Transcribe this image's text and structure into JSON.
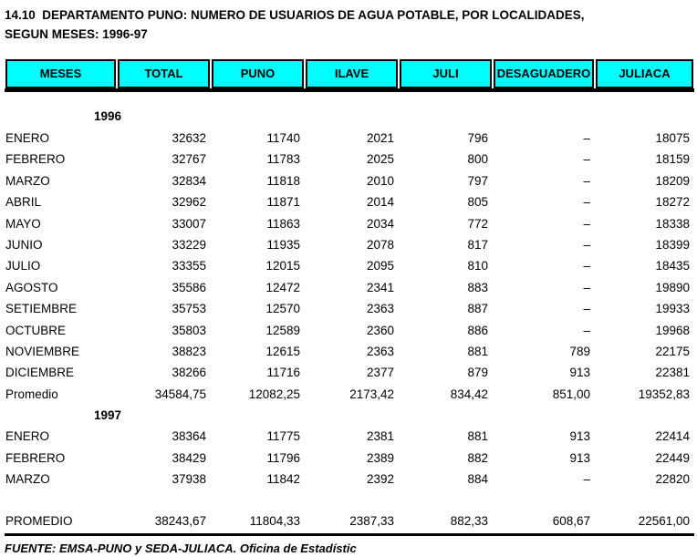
{
  "page": {
    "title_line1": "14.10  DEPARTAMENTO PUNO: NUMERO DE USUARIOS DE AGUA POTABLE, POR LOCALIDADES,",
    "title_line2": "SEGUN MESES: 1996-97"
  },
  "colors": {
    "header_bg": "#00ffff",
    "border": "#000000"
  },
  "table": {
    "columns": [
      "MESES",
      "TOTAL",
      "PUNO",
      "ILAVE",
      "JULI",
      "DESAGUADERO",
      "JULIACA"
    ],
    "column_keys": [
      "meses",
      "total",
      "puno",
      "ilave",
      "juli",
      "desaguadero",
      "juliaca"
    ],
    "sections": [
      {
        "year": "1996",
        "rows": [
          {
            "label": "ENERO",
            "values": [
              "32632",
              "11740",
              "2021",
              "796",
              "–",
              "18075"
            ]
          },
          {
            "label": "FEBRERO",
            "values": [
              "32767",
              "11783",
              "2025",
              "800",
              "–",
              "18159"
            ]
          },
          {
            "label": "MARZO",
            "values": [
              "32834",
              "11818",
              "2010",
              "797",
              "–",
              "18209"
            ]
          },
          {
            "label": "ABRIL",
            "values": [
              "32962",
              "11871",
              "2014",
              "805",
              "–",
              "18272"
            ]
          },
          {
            "label": "MAYO",
            "values": [
              "33007",
              "11863",
              "2034",
              "772",
              "–",
              "18338"
            ]
          },
          {
            "label": "JUNIO",
            "values": [
              "33229",
              "11935",
              "2078",
              "817",
              "–",
              "18399"
            ]
          },
          {
            "label": "JULIO",
            "values": [
              "33355",
              "12015",
              "2095",
              "810",
              "–",
              "18435"
            ]
          },
          {
            "label": "AGOSTO",
            "values": [
              "35586",
              "12472",
              "2341",
              "883",
              "–",
              "19890"
            ]
          },
          {
            "label": "SETIEMBRE",
            "values": [
              "35753",
              "12570",
              "2363",
              "887",
              "–",
              "19933"
            ]
          },
          {
            "label": "OCTUBRE",
            "values": [
              "35803",
              "12589",
              "2360",
              "886",
              "–",
              "19968"
            ]
          },
          {
            "label": "NOVIEMBRE",
            "values": [
              "38823",
              "12615",
              "2363",
              "881",
              "789",
              "22175"
            ]
          },
          {
            "label": "DICIEMBRE",
            "values": [
              "38266",
              "11716",
              "2377",
              "879",
              "913",
              "22381"
            ]
          },
          {
            "label": "Promedio",
            "values": [
              "34584,75",
              "12082,25",
              "2173,42",
              "834,42",
              "851,00",
              "19352,83"
            ]
          }
        ]
      },
      {
        "year": "1997",
        "rows": [
          {
            "label": "ENERO",
            "values": [
              "38364",
              "11775",
              "2381",
              "881",
              "913",
              "22414"
            ]
          },
          {
            "label": "FEBRERO",
            "values": [
              "38429",
              "11796",
              "2389",
              "882",
              "913",
              "22449"
            ]
          },
          {
            "label": "MARZO",
            "values": [
              "37938",
              "11842",
              "2392",
              "884",
              "–",
              "22820"
            ]
          }
        ]
      }
    ],
    "grand_total": {
      "label": "PROMEDIO",
      "values": [
        "38243,67",
        "11804,33",
        "2387,33",
        "882,33",
        "608,67",
        "22561,00"
      ]
    }
  },
  "footer": {
    "source": "FUENTE: EMSA-PUNO y SEDA-JULIACA. Oficina de Estadístic"
  }
}
